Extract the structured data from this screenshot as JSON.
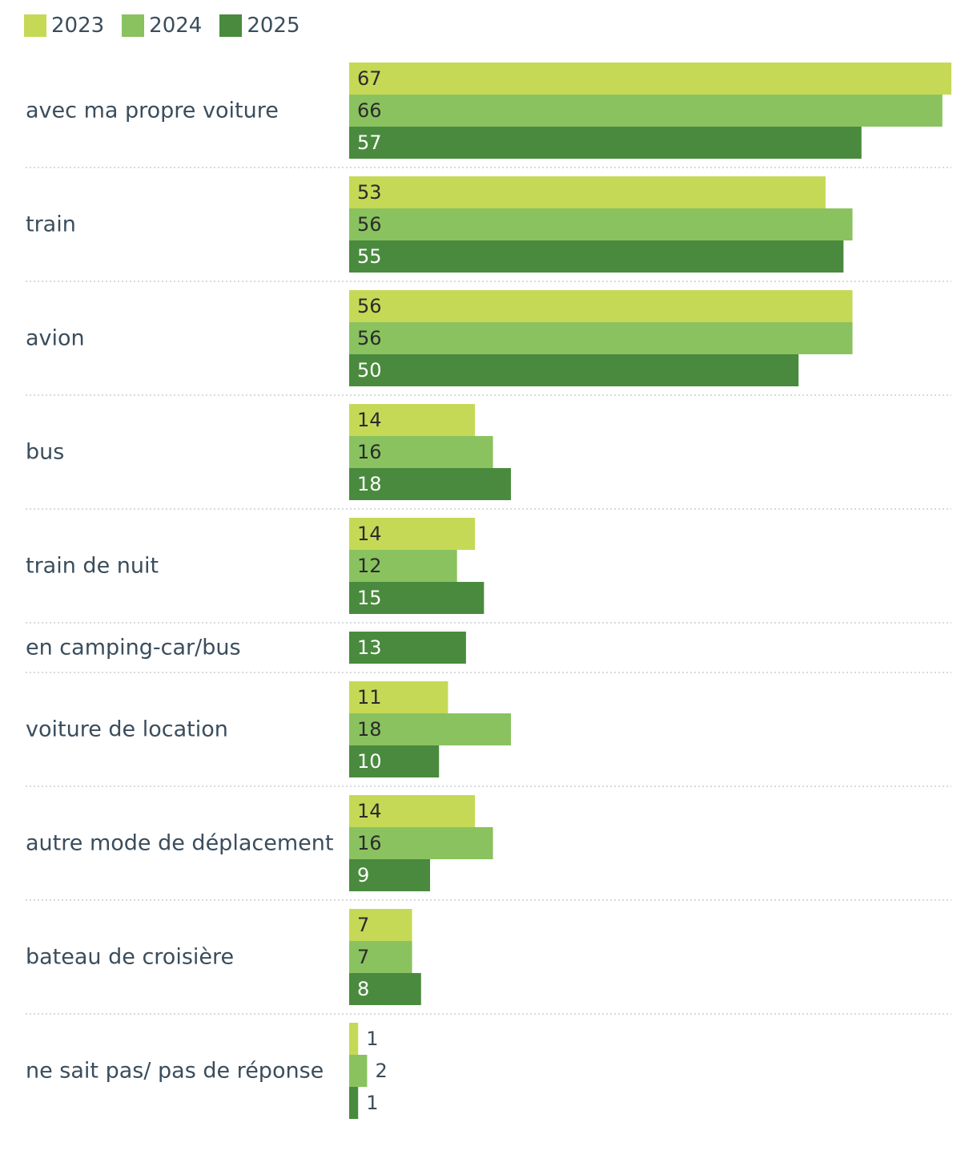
{
  "chart_data": {
    "type": "bar",
    "orientation": "horizontal",
    "title": "",
    "xlabel": "",
    "ylabel": "",
    "xlim": [
      0,
      67
    ],
    "grid": false,
    "legend_position": "top-left",
    "categories": [
      "avec ma propre voiture",
      "train",
      "avion",
      "bus",
      "train de nuit",
      "en camping-car/bus",
      "voiture de location",
      "autre mode de déplacement",
      "bateau de croisière",
      "ne sait pas/ pas de réponse"
    ],
    "series": [
      {
        "name": "2023",
        "color": "#c5d956",
        "label_color": "#2b2b2b",
        "values": [
          67,
          53,
          56,
          14,
          14,
          null,
          11,
          14,
          7,
          1
        ]
      },
      {
        "name": "2024",
        "color": "#8ac25f",
        "label_color": "#2b2b2b",
        "values": [
          66,
          56,
          56,
          16,
          12,
          null,
          18,
          16,
          7,
          2
        ]
      },
      {
        "name": "2025",
        "color": "#4a8a3e",
        "label_color": "#ffffff",
        "values": [
          57,
          55,
          50,
          18,
          15,
          13,
          10,
          9,
          8,
          1
        ]
      }
    ]
  }
}
